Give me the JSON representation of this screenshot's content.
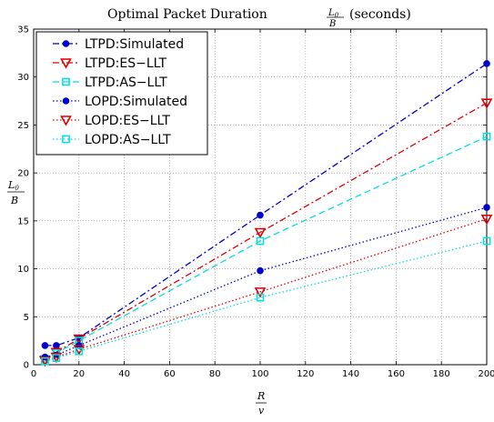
{
  "chart_data": {
    "type": "line",
    "title_main": "Optimal Packet Duration",
    "title_frac_num": "L",
    "title_frac_num_sub": "0",
    "title_frac_den": "B",
    "title_unit": "(seconds)",
    "xlabel_num": "R",
    "xlabel_den": "v",
    "ylabel_num": "L",
    "ylabel_num_sub": "0",
    "ylabel_den": "B",
    "xlim": [
      0,
      200
    ],
    "ylim": [
      0,
      35
    ],
    "xticks": [
      0,
      20,
      40,
      60,
      80,
      100,
      120,
      140,
      160,
      180,
      200
    ],
    "yticks": [
      0,
      5,
      10,
      15,
      20,
      25,
      30,
      35
    ],
    "grid": "dotted",
    "legend_position": "top-left",
    "series": [
      {
        "name": "LTPD:Simulated",
        "color": "#0000cc",
        "dash": "7,3,2,3",
        "marker": "dot",
        "x": [
          5,
          10,
          20,
          100,
          200
        ],
        "y": [
          2.0,
          2.0,
          2.8,
          15.6,
          31.4
        ]
      },
      {
        "name": "LTPD:ES−LLT",
        "color": "#e00000",
        "dash": "7,3,2,3",
        "marker": "triangle",
        "x": [
          5,
          10,
          20,
          100,
          200
        ],
        "y": [
          0.5,
          1.3,
          2.7,
          13.8,
          27.3
        ]
      },
      {
        "name": "LTPD:AS−LLT",
        "color": "#00e0e0",
        "dash": "7,4",
        "marker": "square",
        "x": [
          5,
          10,
          20,
          100,
          200
        ],
        "y": [
          0.6,
          1.2,
          2.5,
          12.9,
          23.8
        ]
      },
      {
        "name": "LOPD:Simulated",
        "color": "#0000cc",
        "dash": "1.5,2.5",
        "marker": "dot",
        "x": [
          5,
          10,
          20,
          100,
          200
        ],
        "y": [
          0.8,
          1.0,
          2.0,
          9.8,
          16.4
        ]
      },
      {
        "name": "LOPD:ES−LLT",
        "color": "#e00000",
        "dash": "1.5,2.5",
        "marker": "triangle",
        "x": [
          5,
          10,
          20,
          100,
          200
        ],
        "y": [
          0.4,
          0.8,
          1.6,
          7.6,
          15.2
        ]
      },
      {
        "name": "LOPD:AS−LLT",
        "color": "#00e0e0",
        "dash": "1.5,2.5",
        "marker": "square",
        "x": [
          5,
          10,
          20,
          100,
          200
        ],
        "y": [
          0.35,
          0.7,
          1.4,
          7.0,
          12.9
        ]
      }
    ]
  }
}
